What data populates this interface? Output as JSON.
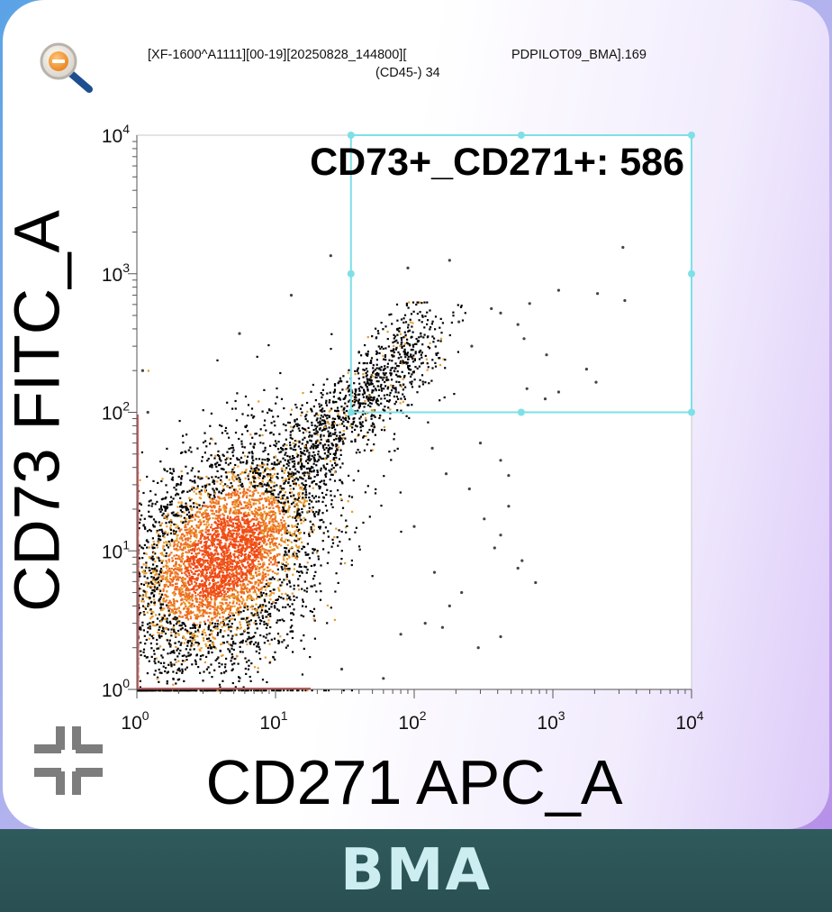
{
  "header": {
    "line1_left": "[XF-1600^A1111][00-19][20250828_144800][",
    "line1_right": "PDPILOT09_BMA].169",
    "line2": "(CD45-) 34"
  },
  "footer": {
    "label": "BMA"
  },
  "icons": {
    "zoom": "zoom-out-icon",
    "collapse": "collapse-arrows-icon"
  },
  "chart_data": {
    "type": "scatter",
    "scale": "log",
    "xlabel": "CD271 APC_A",
    "ylabel": "CD73 FITC_A",
    "xlim": [
      1,
      10000
    ],
    "ylim": [
      1,
      10000
    ],
    "x_ticks": [
      {
        "base": "10",
        "exp": "0"
      },
      {
        "base": "10",
        "exp": "1"
      },
      {
        "base": "10",
        "exp": "2"
      },
      {
        "base": "10",
        "exp": "3"
      },
      {
        "base": "10",
        "exp": "4"
      }
    ],
    "y_ticks": [
      {
        "base": "10",
        "exp": "0"
      },
      {
        "base": "10",
        "exp": "1"
      },
      {
        "base": "10",
        "exp": "2"
      },
      {
        "base": "10",
        "exp": "3"
      },
      {
        "base": "10",
        "exp": "4"
      }
    ],
    "gate": {
      "label": "CD73+_CD271+: 586",
      "x_range": [
        35,
        10000
      ],
      "y_range": [
        100,
        10000
      ],
      "color": "#7ee0e6"
    },
    "density_colors": [
      "#000000",
      "#e89a2a",
      "#ee6a1f",
      "#f04a14"
    ],
    "scatter_points": [
      [
        3200,
        1550
      ],
      [
        180,
        1250
      ],
      [
        2100,
        720
      ],
      [
        1100,
        760
      ],
      [
        3300,
        640
      ],
      [
        680,
        610
      ],
      [
        420,
        520
      ],
      [
        360,
        560
      ],
      [
        560,
        430
      ],
      [
        210,
        450
      ],
      [
        260,
        300
      ],
      [
        900,
        260
      ],
      [
        2050,
        165
      ],
      [
        1750,
        205
      ],
      [
        1100,
        140
      ],
      [
        880,
        125
      ],
      [
        650,
        148
      ],
      [
        620,
        340
      ],
      [
        90,
        1100
      ],
      [
        25,
        1350
      ],
      [
        13,
        700
      ],
      [
        5.5,
        370
      ],
      [
        1.1,
        200
      ],
      [
        1.2,
        100
      ],
      [
        480,
        35
      ],
      [
        320,
        17
      ],
      [
        420,
        13
      ],
      [
        600,
        8.5
      ],
      [
        750,
        5.9
      ],
      [
        560,
        7.5
      ],
      [
        480,
        21
      ],
      [
        380,
        10.5
      ],
      [
        140,
        7
      ],
      [
        180,
        4
      ],
      [
        290,
        2
      ],
      [
        160,
        2.8
      ],
      [
        420,
        2.4
      ],
      [
        220,
        5
      ],
      [
        120,
        3
      ],
      [
        80,
        2.5
      ],
      [
        100,
        15
      ],
      [
        250,
        28
      ],
      [
        135,
        55
      ],
      [
        170,
        36
      ],
      [
        300,
        60
      ],
      [
        420,
        45
      ],
      [
        60,
        1.2
      ],
      [
        30,
        1.4
      ]
    ]
  }
}
